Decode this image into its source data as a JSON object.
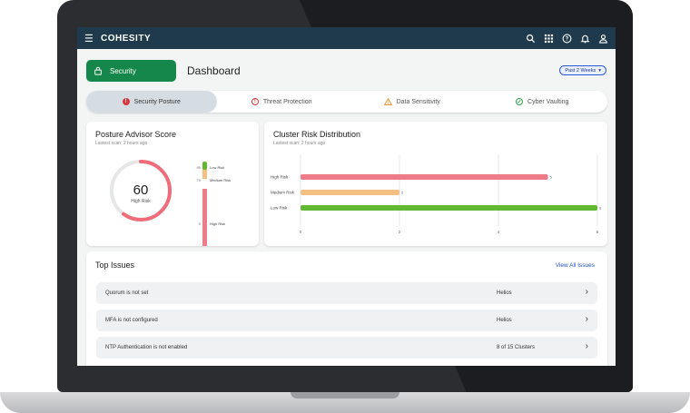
{
  "app": {
    "brand": "COHESITY"
  },
  "header": {
    "section_button": "Security",
    "page_title": "Dashboard",
    "range_label": "Past 2 Weeks"
  },
  "tabs": [
    {
      "label": "Security Posture",
      "icon": "alert-filled-icon",
      "active": true
    },
    {
      "label": "Threat Protection",
      "icon": "alert-circle-icon",
      "active": false
    },
    {
      "label": "Data Sensitivity",
      "icon": "warning-triangle-icon",
      "active": false
    },
    {
      "label": "Cyber Vaulting",
      "icon": "check-circle-icon",
      "active": false
    }
  ],
  "posture": {
    "title": "Posture Advisor Score",
    "subtitle": "Lastest scan: 2 hours ago",
    "score": "60",
    "score_label": "High Risk",
    "score_fraction": 0.6,
    "scale": [
      {
        "value": "90",
        "label": "Low Risk"
      },
      {
        "value": "70",
        "label": "Medium Risk"
      },
      {
        "value": "0",
        "label": "High Risk"
      }
    ]
  },
  "cluster": {
    "title": "Cluster Risk Distribution",
    "subtitle": "Lastest scan: 2 hours ago"
  },
  "chart_data": {
    "type": "bar",
    "orientation": "horizontal",
    "categories": [
      "High Risk",
      "Medium Risk",
      "Low Risk"
    ],
    "values": [
      5,
      2,
      6
    ],
    "colors": [
      "#ef7b86",
      "#f7c083",
      "#62b832"
    ],
    "xlim": [
      0,
      6
    ],
    "xticks": [
      "0",
      "2",
      "4",
      "6"
    ],
    "grid": true
  },
  "issues": {
    "title": "Top Issues",
    "view_all": "View All Issues",
    "rows": [
      {
        "name": "Quorum is not set",
        "scope": "Helios"
      },
      {
        "name": "MFA is not configured",
        "scope": "Helios"
      },
      {
        "name": "NTP Authentication is not enabled",
        "scope": "8 of 15 Clusters"
      }
    ]
  },
  "colors": {
    "topbar": "#1f3a4d",
    "accent_green": "#16874a",
    "high_risk": "#ef7b86",
    "medium_risk": "#f7c083",
    "low_risk": "#62b832"
  }
}
